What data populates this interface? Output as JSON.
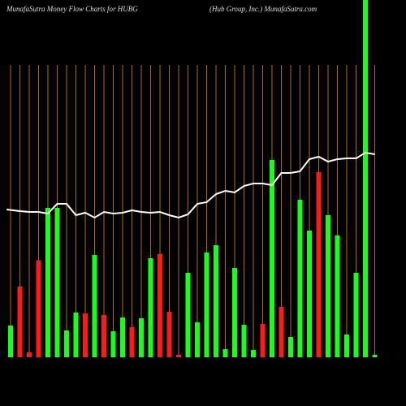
{
  "chart_data": {
    "type": "bar",
    "title": "MunafaSutra  Money Flow  Charts for HUBG",
    "subtitle": "(Hub Group,  Inc.) MunafaSutra.com",
    "ylim": [
      0,
      440
    ],
    "grid_color": "#b36b00",
    "series": [
      {
        "type": "bar",
        "values": [
          39,
          87,
          6,
          119,
          184,
          184,
          33,
          55,
          54,
          126,
          52,
          32,
          49,
          37,
          48,
          122,
          127,
          56,
          3,
          104,
          43,
          129,
          138,
          10,
          110,
          40,
          9,
          41,
          243,
          62,
          25,
          194,
          156,
          228,
          175,
          150,
          28,
          104,
          440,
          3
        ],
        "colors": [
          "#1aff1a",
          "#ff1a1a",
          "#ff1a1a",
          "#ff1a1a",
          "#1aff1a",
          "#1aff1a",
          "#1aff1a",
          "#1aff1a",
          "#ff1a1a",
          "#1aff1a",
          "#ff1a1a",
          "#1aff1a",
          "#1aff1a",
          "#ff1a1a",
          "#1aff1a",
          "#1aff1a",
          "#ff1a1a",
          "#ff1a1a",
          "#ff1a1a",
          "#1aff1a",
          "#1aff1a",
          "#1aff1a",
          "#1aff1a",
          "#1aff1a",
          "#1aff1a",
          "#1aff1a",
          "#1aff1a",
          "#ff1a1a",
          "#1aff1a",
          "#ff1a1a",
          "#1aff1a",
          "#1aff1a",
          "#1aff1a",
          "#ff1a1a",
          "#1aff1a",
          "#1aff1a",
          "#1aff1a",
          "#1aff1a",
          "#1aff1a",
          "#1aff1a"
        ]
      },
      {
        "type": "line",
        "color": "#ffffff",
        "values": [
          182,
          180,
          179,
          179,
          177,
          189,
          189,
          175,
          178,
          172,
          179,
          177,
          178,
          181,
          179,
          178,
          179,
          175,
          172,
          176,
          189,
          191,
          201,
          205,
          203,
          211,
          214,
          214,
          212,
          227,
          227,
          229,
          244,
          247,
          241,
          244,
          245,
          245,
          252,
          250
        ]
      }
    ]
  }
}
